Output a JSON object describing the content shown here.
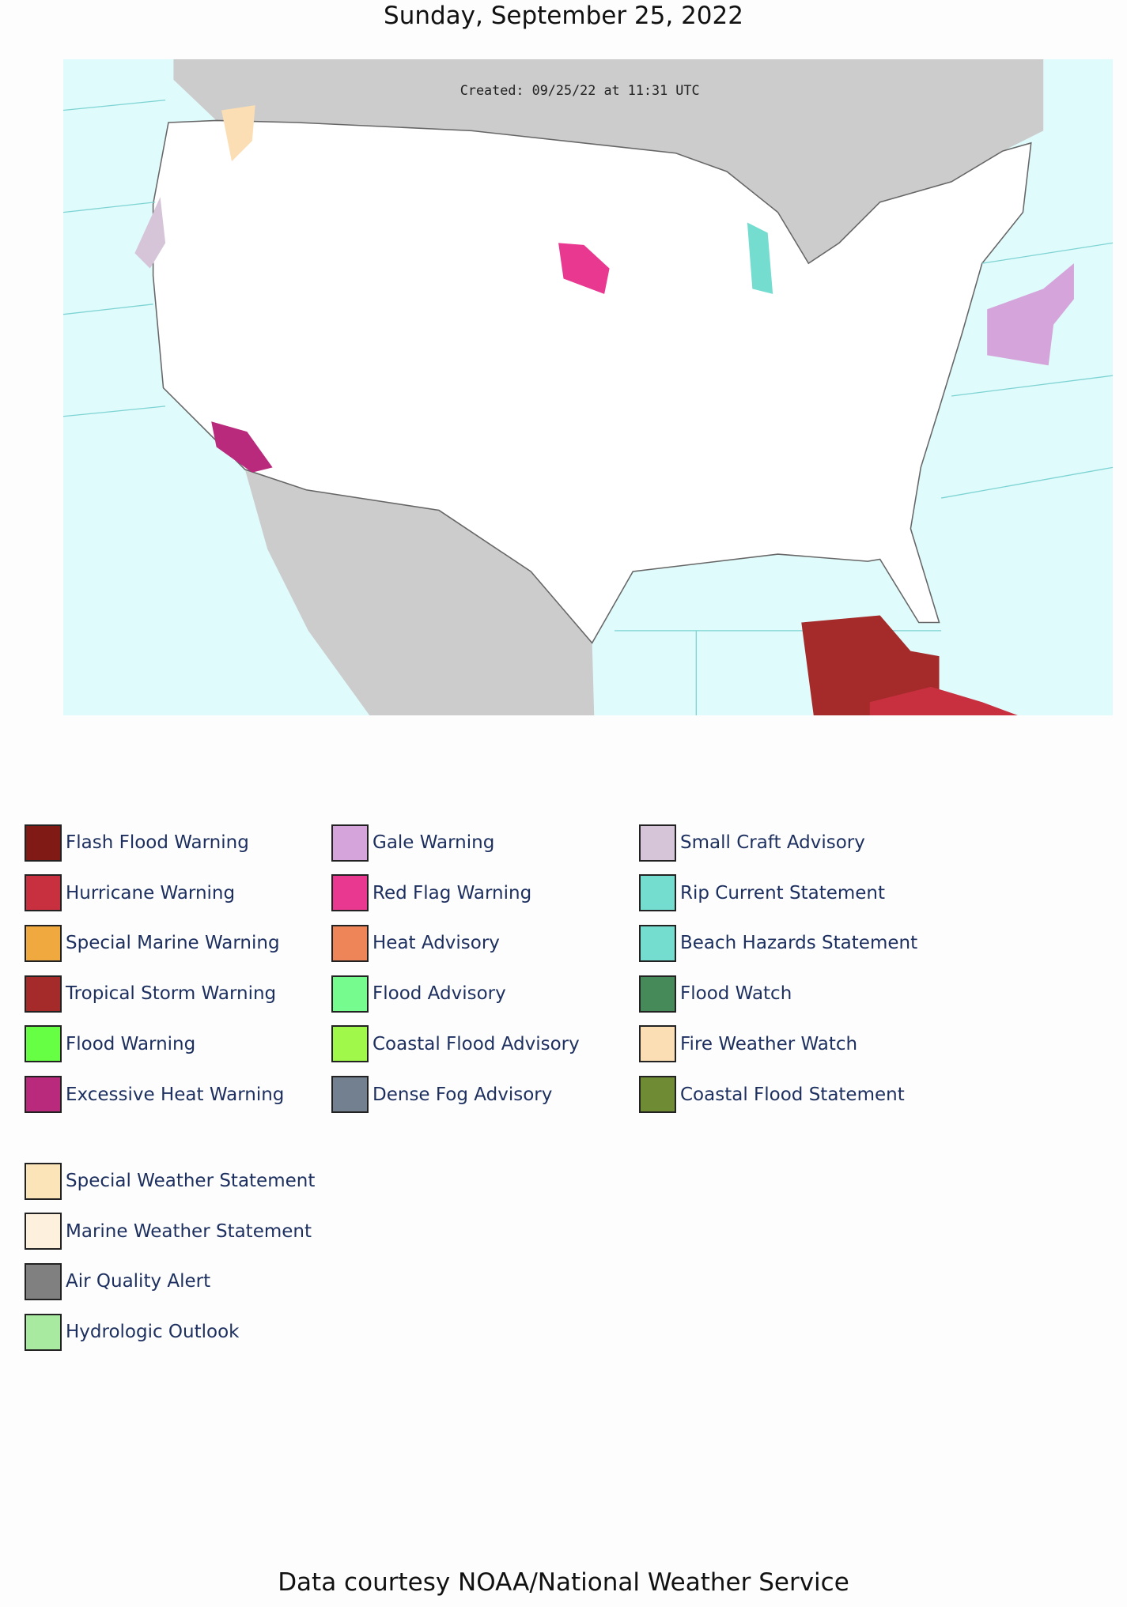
{
  "header": {
    "title": "Sunday, September 25, 2022"
  },
  "map": {
    "created_label": "Created: 09/25/22 at 11:31 UTC"
  },
  "legend": {
    "primary": [
      {
        "label": "Flash Flood Warning",
        "color": "#7f1a14"
      },
      {
        "label": "Hurricane Warning",
        "color": "#c83040"
      },
      {
        "label": "Special Marine Warning",
        "color": "#f0a93e"
      },
      {
        "label": "Tropical Storm Warning",
        "color": "#a52a2a"
      },
      {
        "label": "Flood Warning",
        "color": "#66ff44"
      },
      {
        "label": "Excessive Heat Warning",
        "color": "#b92a7c"
      },
      {
        "label": "Gale Warning",
        "color": "#d4a4da"
      },
      {
        "label": "Red Flag Warning",
        "color": "#e83890"
      },
      {
        "label": "Heat Advisory",
        "color": "#ee8558"
      },
      {
        "label": "Flood Advisory",
        "color": "#76fb8e"
      },
      {
        "label": "Coastal Flood Advisory",
        "color": "#a0f94a"
      },
      {
        "label": "Dense Fog Advisory",
        "color": "#72808f"
      },
      {
        "label": "Small Craft Advisory",
        "color": "#d6c4d8"
      },
      {
        "label": "Rip Current Statement",
        "color": "#74ddd0"
      },
      {
        "label": "Beach Hazards Statement",
        "color": "#74ddd0"
      },
      {
        "label": "Flood Watch",
        "color": "#478a5a"
      },
      {
        "label": "Fire Weather Watch",
        "color": "#fbdeb4"
      },
      {
        "label": "Coastal Flood Statement",
        "color": "#6f8b34"
      }
    ],
    "secondary": [
      {
        "label": "Special Weather Statement",
        "color": "#fbe4b8"
      },
      {
        "label": "Marine Weather Statement",
        "color": "#fdf0dc"
      },
      {
        "label": "Air Quality Alert",
        "color": "#808080"
      },
      {
        "label": "Hydrologic Outlook",
        "color": "#a8eaa0"
      }
    ]
  },
  "footer": {
    "text": "Data courtesy NOAA/National Weather Service"
  }
}
